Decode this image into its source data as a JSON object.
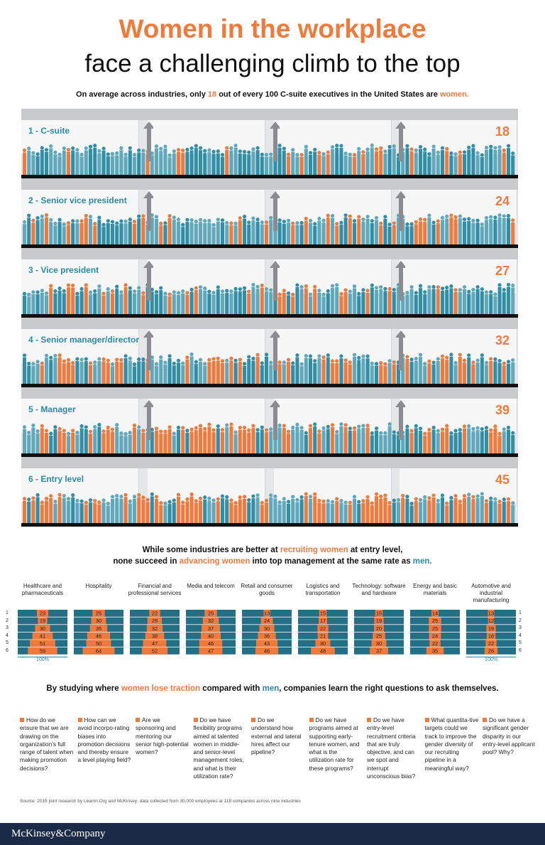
{
  "header": {
    "title_line1": "Women in the workplace",
    "title_line2": "face a challenging climb to the top",
    "subtitle_pre": "On average across industries, only ",
    "subtitle_num": "18",
    "subtitle_mid": " out of every 100 C-suite executives in the United States are ",
    "subtitle_end": "women."
  },
  "chart_data": [
    {
      "type": "bar",
      "title": "",
      "categories": [
        "1 - C-suite",
        "2 - Senior vice president",
        "3 - Vice president",
        "4 - Senior manager/director",
        "5 - Manager",
        "6 - Entry level"
      ],
      "values": [
        18,
        24,
        27,
        32,
        39,
        45
      ],
      "ylim": [
        0,
        100
      ]
    },
    {
      "type": "bar",
      "levels": [
        "1",
        "2",
        "3",
        "4",
        "5",
        "6"
      ],
      "total_label": "100%",
      "industries": [
        {
          "name": "Healthcare and pharmaceuticals",
          "values": [
            23,
            19,
            30,
            41,
            51,
            59
          ]
        },
        {
          "name": "Hospitality",
          "values": [
            25,
            30,
            35,
            46,
            50,
            64
          ]
        },
        {
          "name": "Financial and professional services",
          "values": [
            22,
            29,
            32,
            38,
            47,
            52
          ]
        },
        {
          "name": "Media and telecom",
          "values": [
            25,
            32,
            37,
            40,
            46,
            47
          ]
        },
        {
          "name": "Retail and consumer goods",
          "values": [
            13,
            24,
            30,
            36,
            43,
            46
          ]
        },
        {
          "name": "Logistics and transportation",
          "values": [
            15,
            17,
            22,
            21,
            30,
            48
          ]
        },
        {
          "name": "Technology: software and hardware",
          "values": [
            15,
            19,
            20,
            25,
            30,
            37
          ]
        },
        {
          "name": "Energy and basic materials",
          "values": [
            14,
            25,
            25,
            24,
            22,
            35
          ]
        },
        {
          "name": "Automotive and industrial manufacturing",
          "values": [
            13,
            12,
            19,
            18,
            22,
            26
          ]
        }
      ]
    }
  ],
  "section2": {
    "l1_pre": "While some industries are better at ",
    "l1_hl": "recruiting women",
    "l1_post": " at entry level,",
    "l2_pre": "none succeed in ",
    "l2_hl": "advancing women",
    "l2_mid": " into top management at the same rate as ",
    "l2_end": "men."
  },
  "section3": {
    "pre": "By studying where ",
    "hl1": "women lose traction",
    "mid": " compared with ",
    "hl2": "men",
    "post": ", companies learn the right questions to ask themselves."
  },
  "questions": [
    "How do we ensure that we are drawing on the organization’s full range of talent when making promotion decisions?",
    "How can we avoid incorpo-rating biases into promotion decisions and thereby ensure a level playing field?",
    "Are we sponsoring and mentoring our senior high-potential women?",
    "Do we have flexibility programs aimed at talented women in middle- and senior-level management roles, and what is their utilization rate?",
    "Do we understand how external and lateral hires affect our pipeline?",
    "Do we have programs aimed at supporting early-tenure women, and what is the utilization rate for these programs?",
    "Do we have entry-level recruitment criteria that are truly objective, and can we spot and interrupt unconscious bias?",
    "What quantita-tive targets could we track to improve the gender diversity of our recruiting pipeline in a meaningful way?",
    "Do we have a significant gender disparity in our entry-level applicant pool? Why?"
  ],
  "source": "Source: 2015 joint research by LeanIn.Org and McKinsey; data collected from 30,000 employees at 118 companies across nine industries",
  "footer": {
    "brand": "McKinsey&Company"
  },
  "colors": {
    "orange": "#f07a3c",
    "teal": "#2a8ba5",
    "navy": "#1b2a47"
  }
}
